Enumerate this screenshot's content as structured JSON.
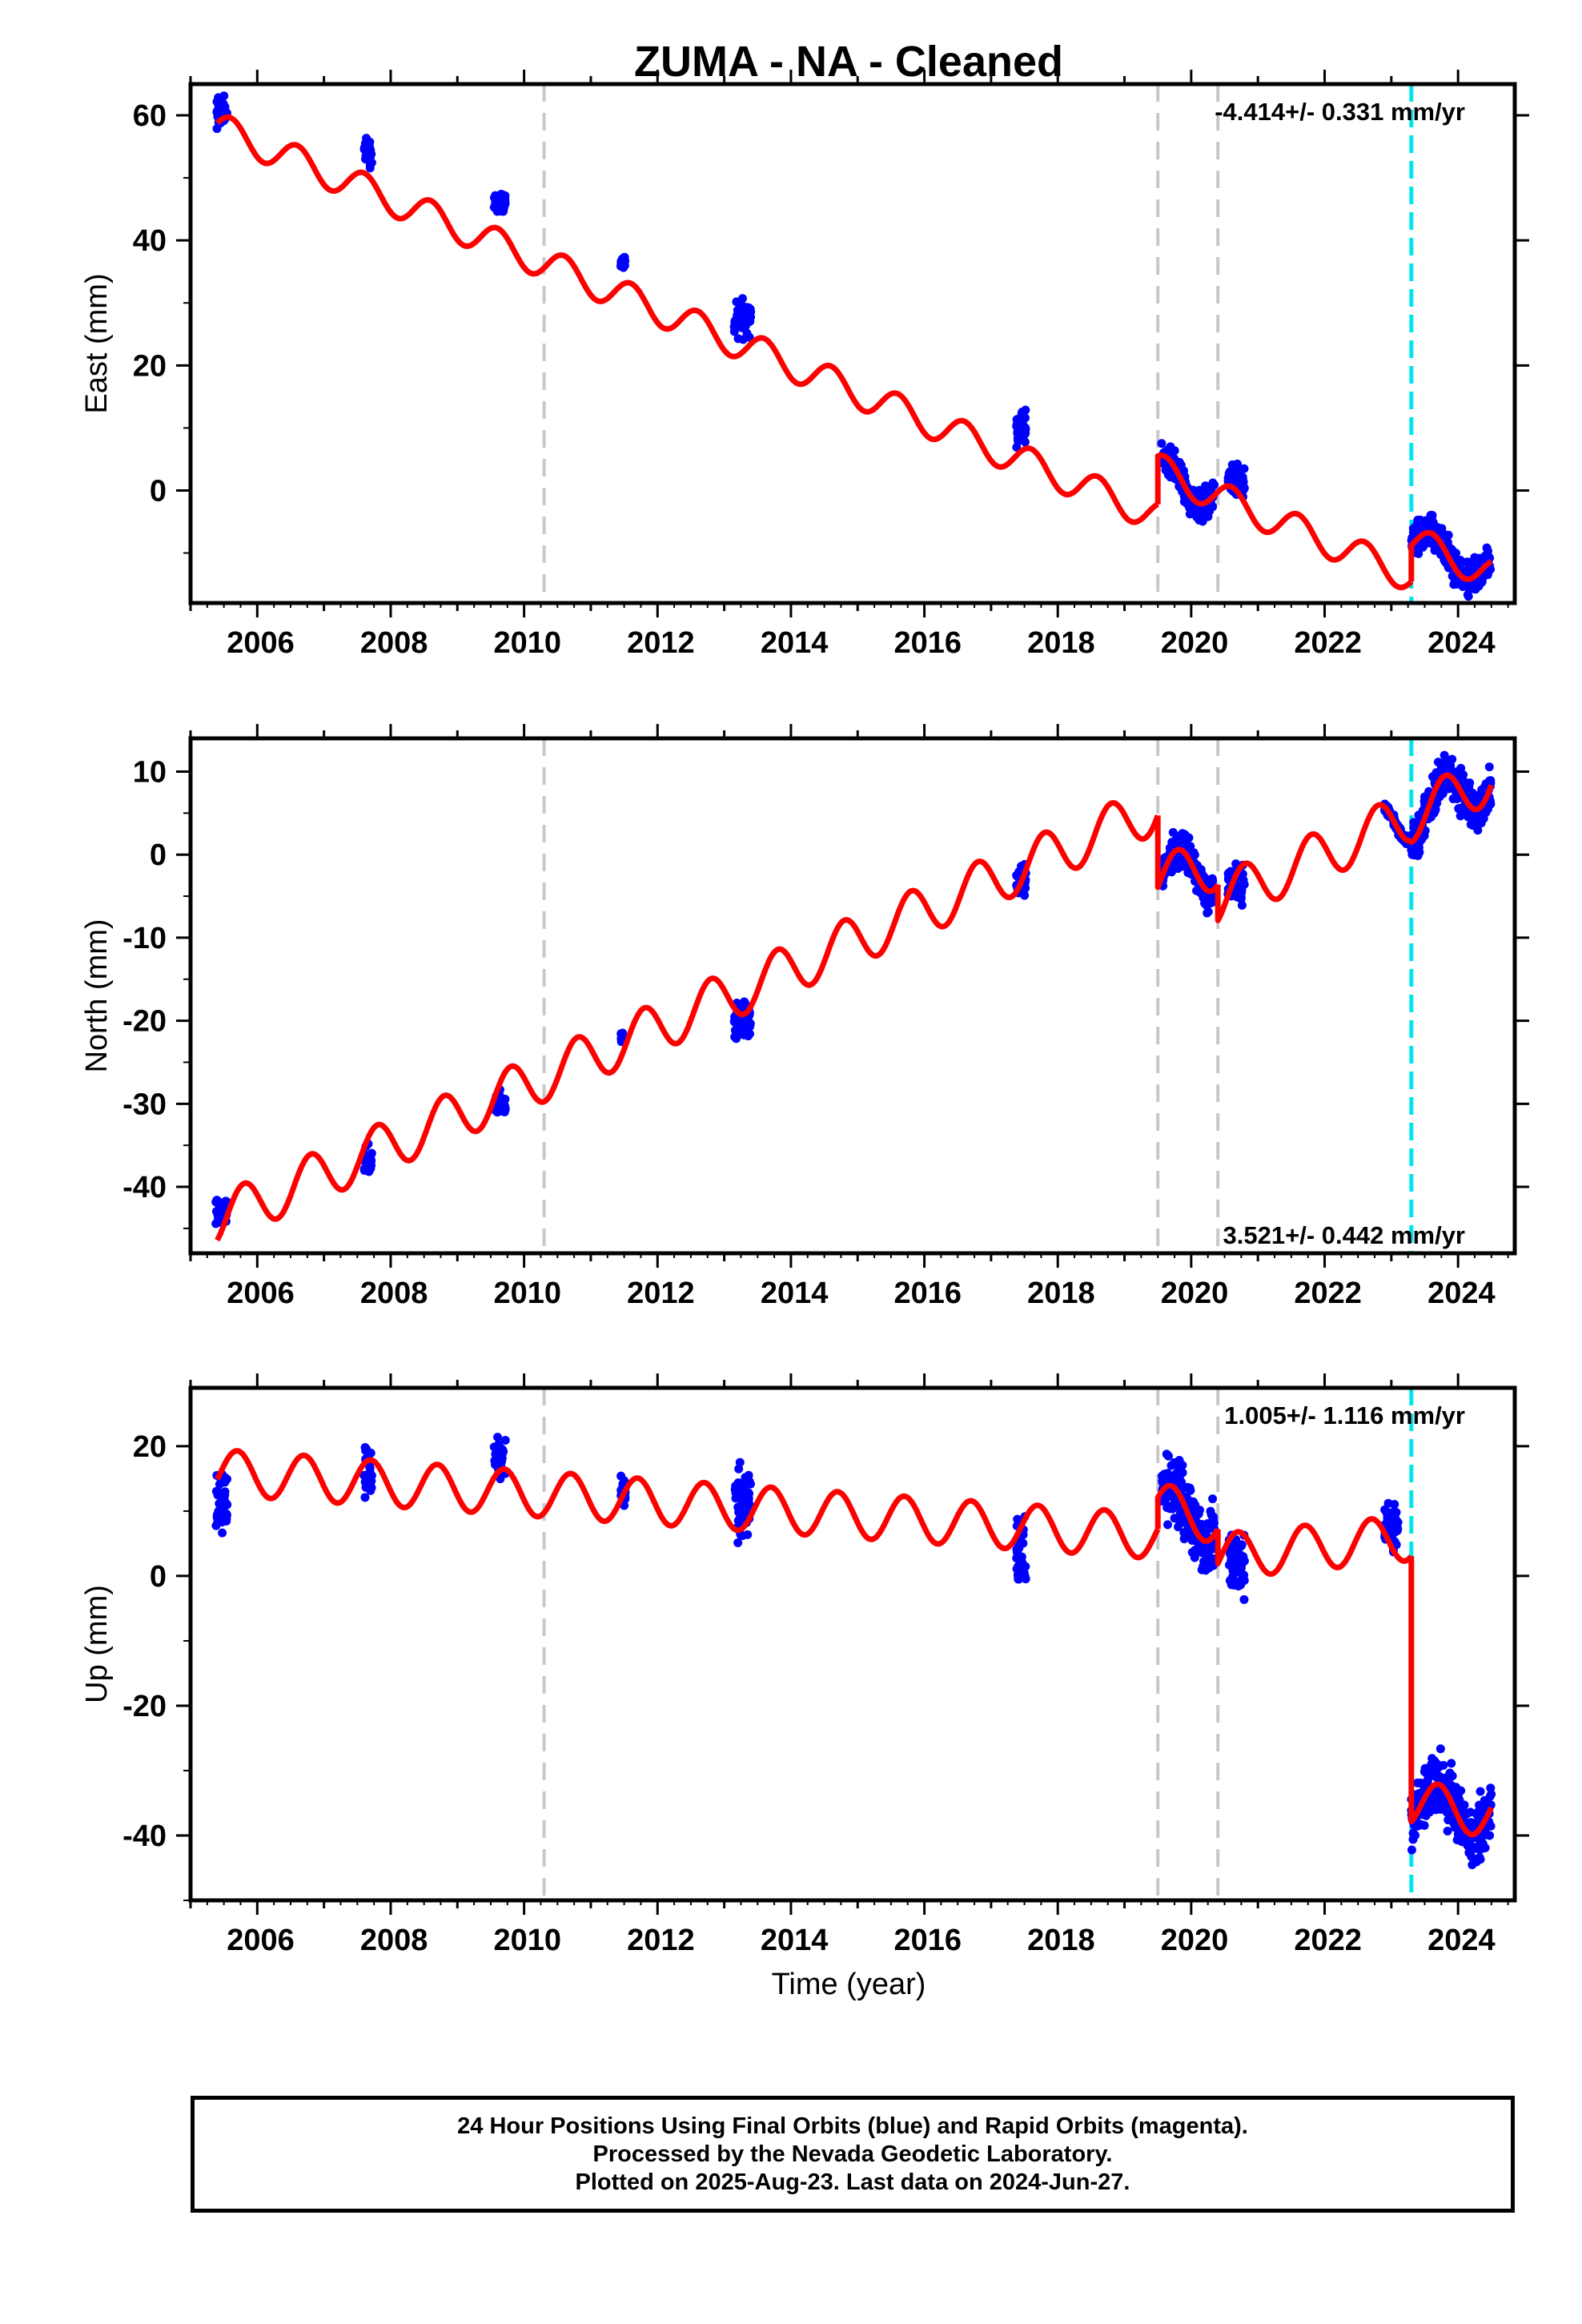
{
  "figure": {
    "title": "ZUMA  - NA - Cleaned",
    "xlabel": "Time (year)",
    "footer": [
      "24 Hour Positions Using Final Orbits (blue) and Rapid Orbits (magenta).",
      "Processed by the Nevada Geodetic Laboratory.",
      "Plotted on 2025-Aug-23. Last data on 2024-Jun-27."
    ]
  },
  "colors": {
    "data_points": "#0000ff",
    "model_line": "#ff0000",
    "equipment_change": "#c8c8c8",
    "earthquake": "#00e5ee",
    "frame": "#000000"
  },
  "chart_data": [
    {
      "type": "scatter",
      "name": "East",
      "ylabel": "East (mm)",
      "rate": "-4.414+/- 0.331 mm/yr",
      "rate_position": "top-right",
      "xlim": [
        2005.0,
        2024.85
      ],
      "ylim": [
        -18,
        65
      ],
      "xticks": [
        2006,
        2008,
        2010,
        2012,
        2014,
        2016,
        2018,
        2020,
        2022,
        2024
      ],
      "yticks": [
        0,
        20,
        40,
        60
      ],
      "grid": false,
      "equipment_changes": [
        2010.3,
        2019.5,
        2020.4
      ],
      "earthquakes": [
        2023.3
      ],
      "model": {
        "amplitude": 2.5,
        "phase": 0.35,
        "segments": [
          {
            "start": 2005.4,
            "end": 2019.5,
            "offset": 58.0,
            "rate": -4.414,
            "t0": 2005.4
          },
          {
            "start": 2019.5,
            "end": 2020.4,
            "offset": 3.5,
            "rate": -5.0,
            "t0": 2019.5
          },
          {
            "start": 2020.4,
            "end": 2023.3,
            "offset": -1.0,
            "rate": -4.414,
            "t0": 2020.4
          },
          {
            "start": 2023.3,
            "end": 2024.5,
            "offset": -8.0,
            "rate": -4.5,
            "t0": 2023.3
          }
        ]
      },
      "data_clusters": [
        {
          "start": 2005.38,
          "end": 2005.55,
          "center": 60.5,
          "spread": 3.5
        },
        {
          "start": 2007.6,
          "end": 2007.72,
          "center": 54.0,
          "spread": 3.5
        },
        {
          "start": 2009.55,
          "end": 2009.72,
          "center": 46.0,
          "spread": 2.0
        },
        {
          "start": 2011.45,
          "end": 2011.52,
          "center": 36.5,
          "spread": 1.5
        },
        {
          "start": 2013.15,
          "end": 2013.4,
          "center": 27.5,
          "spread": 4.0
        },
        {
          "start": 2017.38,
          "end": 2017.52,
          "center": 10.0,
          "spread": 4.5
        },
        {
          "start": 2019.55,
          "end": 2020.35,
          "center": 3.5,
          "spread": 3.5
        },
        {
          "start": 2020.55,
          "end": 2020.8,
          "center": 1.5,
          "spread": 3.5
        },
        {
          "start": 2023.3,
          "end": 2024.5,
          "center": -8.0,
          "spread": 4.0
        }
      ]
    },
    {
      "type": "scatter",
      "name": "North",
      "ylabel": "North (mm)",
      "rate": "3.521+/- 0.442 mm/yr",
      "rate_position": "bottom-right",
      "xlim": [
        2005.0,
        2024.85
      ],
      "ylim": [
        -48,
        14
      ],
      "xticks": [
        2006,
        2008,
        2010,
        2012,
        2014,
        2016,
        2018,
        2020,
        2022,
        2024
      ],
      "yticks": [
        -40,
        -30,
        -20,
        -10,
        0,
        10
      ],
      "grid": false,
      "equipment_changes": [
        2010.3,
        2019.5,
        2020.4
      ],
      "earthquakes": [
        2023.3
      ],
      "model": {
        "amplitude": 3.0,
        "phase": 0.55,
        "segments": [
          {
            "start": 2005.4,
            "end": 2019.5,
            "offset": -44.0,
            "rate": 3.521,
            "t0": 2005.4
          },
          {
            "start": 2019.5,
            "end": 2020.4,
            "offset": -3.0,
            "rate": 2.0,
            "t0": 2019.5
          },
          {
            "start": 2020.4,
            "end": 2023.3,
            "offset": -5.5,
            "rate": 3.521,
            "t0": 2020.4
          },
          {
            "start": 2023.3,
            "end": 2024.5,
            "offset": 4.5,
            "rate": 4.0,
            "t0": 2023.3
          }
        ]
      },
      "data_clusters": [
        {
          "start": 2005.38,
          "end": 2005.55,
          "center": -43.0,
          "spread": 2.5
        },
        {
          "start": 2007.6,
          "end": 2007.72,
          "center": -37.0,
          "spread": 2.5
        },
        {
          "start": 2009.55,
          "end": 2009.72,
          "center": -30.0,
          "spread": 2.0
        },
        {
          "start": 2011.45,
          "end": 2011.52,
          "center": -22.0,
          "spread": 1.0
        },
        {
          "start": 2013.15,
          "end": 2013.4,
          "center": -20.0,
          "spread": 3.0
        },
        {
          "start": 2017.38,
          "end": 2017.52,
          "center": -3.0,
          "spread": 3.0
        },
        {
          "start": 2019.55,
          "end": 2020.35,
          "center": -4.0,
          "spread": 3.5
        },
        {
          "start": 2020.55,
          "end": 2020.8,
          "center": -3.5,
          "spread": 3.0
        },
        {
          "start": 2022.9,
          "end": 2023.3,
          "center": 1.0,
          "spread": 1.0
        },
        {
          "start": 2023.3,
          "end": 2024.5,
          "center": 6.0,
          "spread": 3.5
        }
      ]
    },
    {
      "type": "scatter",
      "name": "Up",
      "ylabel": "Up (mm)",
      "rate": "1.005+/- 1.116 mm/yr",
      "rate_position": "top-right",
      "xlim": [
        2005.0,
        2024.85
      ],
      "ylim": [
        -50,
        29
      ],
      "xticks": [
        2006,
        2008,
        2010,
        2012,
        2014,
        2016,
        2018,
        2020,
        2022,
        2024
      ],
      "yticks": [
        -40,
        -20,
        0,
        20
      ],
      "grid": false,
      "equipment_changes": [
        2010.3,
        2019.5,
        2020.4
      ],
      "earthquakes": [
        2023.3
      ],
      "model": {
        "amplitude": 3.5,
        "phase": 0.45,
        "segments": [
          {
            "start": 2005.4,
            "end": 2019.5,
            "offset": 16.0,
            "rate": -0.7,
            "t0": 2005.4
          },
          {
            "start": 2019.5,
            "end": 2020.4,
            "offset": 11.0,
            "rate": -3.0,
            "t0": 2019.5
          },
          {
            "start": 2020.4,
            "end": 2023.3,
            "offset": 3.0,
            "rate": 1.0,
            "t0": 2020.4
          },
          {
            "start": 2023.3,
            "end": 2024.5,
            "offset": -35.0,
            "rate": -1.5,
            "t0": 2023.3
          }
        ]
      },
      "data_clusters": [
        {
          "start": 2005.38,
          "end": 2005.55,
          "center": 12.0,
          "spread": 7.0
        },
        {
          "start": 2007.6,
          "end": 2007.72,
          "center": 16.0,
          "spread": 5.5
        },
        {
          "start": 2009.55,
          "end": 2009.72,
          "center": 17.5,
          "spread": 5.5
        },
        {
          "start": 2011.45,
          "end": 2011.52,
          "center": 13.0,
          "spread": 3.0
        },
        {
          "start": 2013.15,
          "end": 2013.4,
          "center": 11.0,
          "spread": 7.5
        },
        {
          "start": 2017.38,
          "end": 2017.52,
          "center": 3.0,
          "spread": 7.5
        },
        {
          "start": 2019.55,
          "end": 2020.35,
          "center": 13.0,
          "spread": 7.5
        },
        {
          "start": 2020.55,
          "end": 2020.8,
          "center": 2.0,
          "spread": 8.0
        },
        {
          "start": 2022.9,
          "end": 2023.1,
          "center": 8.0,
          "spread": 5.0
        },
        {
          "start": 2023.3,
          "end": 2024.5,
          "center": -35.0,
          "spread": 7.0
        }
      ]
    }
  ]
}
